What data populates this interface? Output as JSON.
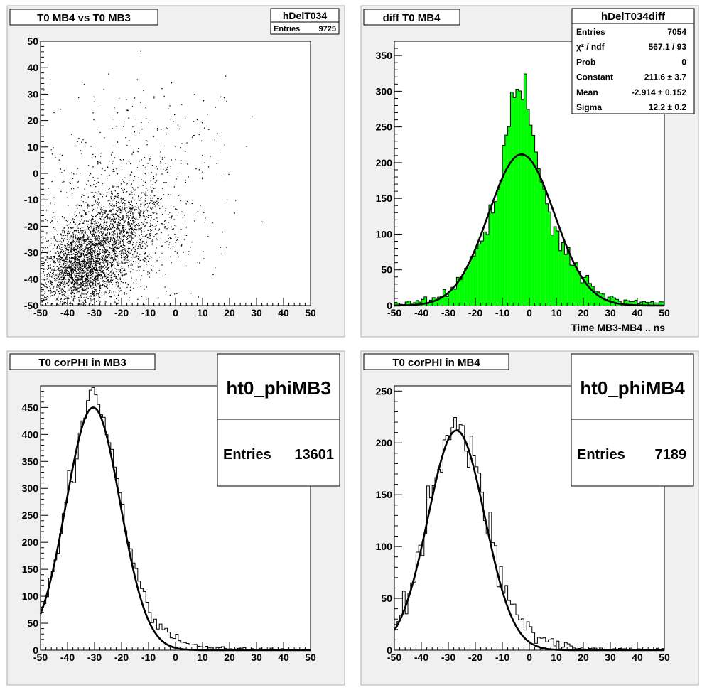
{
  "colors": {
    "pad_bg": "#f0f0f0",
    "frame": "#000000",
    "fill_green": "#00ff00",
    "stats_bg": "#ffffff"
  },
  "chart_data": [
    {
      "type": "scatter",
      "title": "T0 MB4 vs T0 MB3",
      "xlabel": "",
      "ylabel": "",
      "xlim": [
        -50,
        50
      ],
      "ylim": [
        -50,
        50
      ],
      "x_ticks": [
        "-50",
        "-40",
        "-30",
        "-20",
        "-10",
        "0",
        "10",
        "20",
        "30",
        "40",
        "50"
      ],
      "y_ticks": [
        "-50",
        "-40",
        "-30",
        "-20",
        "-10",
        "0",
        "10",
        "20",
        "30",
        "40",
        "50"
      ],
      "stats": {
        "name": "hDelT034",
        "rows": [
          [
            "Entries",
            "9725"
          ]
        ]
      },
      "series": [
        {
          "entries": 9725,
          "clusters": [
            {
              "cx": -35,
              "cy": -35,
              "sx": 8,
              "sy": 8,
              "weight": 0.55
            },
            {
              "cx": -22,
              "cy": -22,
              "sx": 9,
              "sy": 9,
              "weight": 0.3
            },
            {
              "cx": -20,
              "cy": -10,
              "sx": 20,
              "sy": 22,
              "weight": 0.15
            }
          ]
        }
      ]
    },
    {
      "type": "bar",
      "title": "diff T0 MB4",
      "xlabel": "Time MB3-MB4  ..  ns",
      "ylabel": "",
      "xlim": [
        -50,
        50
      ],
      "ylim": [
        0,
        370
      ],
      "x_ticks": [
        "-50",
        "-40",
        "-30",
        "-20",
        "-10",
        "0",
        "10",
        "20",
        "30",
        "40",
        "50"
      ],
      "y_ticks": [
        "0",
        "50",
        "100",
        "150",
        "200",
        "250",
        "300",
        "350"
      ],
      "stats": {
        "name": "hDelT034diff",
        "rows": [
          [
            "Entries",
            "7054"
          ],
          [
            "χ² / ndf",
            "567.1 / 93"
          ],
          [
            "Prob",
            "0"
          ],
          [
            "Constant",
            "211.6 ± 3.7"
          ],
          [
            "Mean",
            "-2.914 ± 0.152"
          ],
          [
            "Sigma",
            "12.2 ± 0.2"
          ]
        ]
      },
      "series": [
        {
          "name": "histogram",
          "fit": {
            "constant": 211.6,
            "mean": -2.914,
            "sigma": 12.2
          },
          "core": {
            "amp": 140,
            "mean": -3,
            "sigma": 4.5
          }
        }
      ]
    },
    {
      "type": "bar",
      "title": "T0 corPHI in MB3",
      "xlabel": "",
      "ylabel": "",
      "xlim": [
        -50,
        50
      ],
      "ylim": [
        0,
        490
      ],
      "x_ticks": [
        "-50",
        "-40",
        "-30",
        "-20",
        "-10",
        "0",
        "10",
        "20",
        "30",
        "40",
        "50"
      ],
      "y_ticks": [
        "0",
        "50",
        "100",
        "150",
        "200",
        "250",
        "300",
        "350",
        "400",
        "450"
      ],
      "stats": {
        "name": "ht0_phiMB3",
        "rows": [
          [
            "Entries",
            "13601"
          ]
        ]
      },
      "series": [
        {
          "name": "histogram",
          "fit": {
            "constant": 450,
            "mean": -30.5,
            "sigma": 10
          },
          "tail": {
            "amp": 25,
            "mean": -10,
            "sigma": 12
          }
        }
      ]
    },
    {
      "type": "bar",
      "title": "T0 corPHI in MB4",
      "xlabel": "",
      "ylabel": "",
      "xlim": [
        -50,
        50
      ],
      "ylim": [
        0,
        255
      ],
      "x_ticks": [
        "-50",
        "-40",
        "-30",
        "-20",
        "-10",
        "0",
        "10",
        "20",
        "30",
        "40",
        "50"
      ],
      "y_ticks": [
        "0",
        "50",
        "100",
        "150",
        "200",
        "250"
      ],
      "stats": {
        "name": "ht0_phiMB4",
        "rows": [
          [
            "Entries",
            "7189"
          ]
        ]
      },
      "series": [
        {
          "name": "histogram",
          "fit": {
            "constant": 212,
            "mean": -27,
            "sigma": 10.5
          },
          "tail": {
            "amp": 14,
            "mean": -8,
            "sigma": 12
          }
        }
      ]
    }
  ]
}
